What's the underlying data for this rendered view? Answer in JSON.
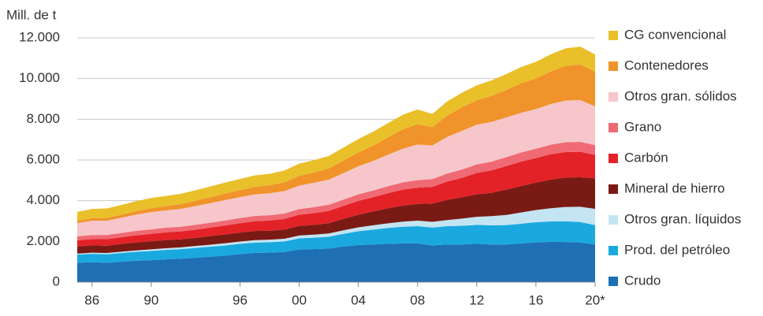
{
  "chart_data": {
    "type": "stacked_area",
    "y_label": "Mill. de t",
    "x": [
      1985,
      1986,
      1987,
      1988,
      1989,
      1990,
      1991,
      1992,
      1993,
      1994,
      1995,
      1996,
      1997,
      1998,
      1999,
      2000,
      2001,
      2002,
      2003,
      2004,
      2005,
      2006,
      2007,
      2008,
      2009,
      2010,
      2011,
      2012,
      2013,
      2014,
      2015,
      2016,
      2017,
      2018,
      2019,
      2020
    ],
    "xlim": [
      1985,
      2020
    ],
    "xticks": [
      {
        "value": 1986,
        "label": "86"
      },
      {
        "value": 1990,
        "label": "90"
      },
      {
        "value": 1996,
        "label": "96"
      },
      {
        "value": 2000,
        "label": "00"
      },
      {
        "value": 2004,
        "label": "04"
      },
      {
        "value": 2008,
        "label": "08"
      },
      {
        "value": 2012,
        "label": "12"
      },
      {
        "value": 2016,
        "label": "16"
      },
      {
        "value": 2020,
        "label": "20*"
      }
    ],
    "ylim": [
      0,
      12000
    ],
    "yticks": [
      0,
      {
        "value": 2000,
        "label": "2.000"
      },
      {
        "value": 4000,
        "label": "4.000"
      },
      {
        "value": 6000,
        "label": "6.000"
      },
      {
        "value": 8000,
        "label": "8.000"
      },
      {
        "value": 10000,
        "label": "10.000"
      },
      {
        "value": 12000,
        "label": "12.000"
      }
    ],
    "grid": true,
    "legend": "right",
    "series": [
      {
        "name": "Crudo",
        "color": "#1f6fb5",
        "values": [
          950,
          980,
          950,
          1000,
          1050,
          1080,
          1120,
          1150,
          1200,
          1250,
          1300,
          1380,
          1430,
          1450,
          1480,
          1600,
          1620,
          1650,
          1750,
          1820,
          1850,
          1880,
          1900,
          1900,
          1800,
          1850,
          1850,
          1880,
          1850,
          1850,
          1900,
          1950,
          1980,
          1970,
          1950,
          1850
        ]
      },
      {
        "name": "Prod. del petróleo",
        "color": "#1aa9df",
        "values": [
          400,
          410,
          420,
          430,
          440,
          450,
          460,
          470,
          480,
          490,
          500,
          500,
          510,
          510,
          520,
          550,
          560,
          580,
          620,
          680,
          730,
          780,
          820,
          850,
          880,
          900,
          920,
          930,
          940,
          950,
          970,
          990,
          1000,
          1020,
          1000,
          950
        ]
      },
      {
        "name": "Otros gran. líquidos",
        "color": "#c3e4f2",
        "values": [
          50,
          55,
          60,
          65,
          70,
          80,
          85,
          90,
          95,
          100,
          110,
          115,
          120,
          125,
          130,
          140,
          150,
          160,
          175,
          190,
          210,
          230,
          250,
          270,
          280,
          300,
          350,
          400,
          450,
          500,
          550,
          600,
          650,
          700,
          750,
          800
        ]
      },
      {
        "name": "Mineral de hierro",
        "color": "#7a1a14",
        "values": [
          350,
          360,
          360,
          380,
          390,
          400,
          400,
          390,
          400,
          420,
          430,
          440,
          450,
          440,
          450,
          470,
          480,
          510,
          560,
          620,
          680,
          740,
          790,
          820,
          900,
          990,
          1050,
          1100,
          1150,
          1250,
          1300,
          1350,
          1400,
          1450,
          1450,
          1500
        ]
      },
      {
        "name": "Carbón",
        "color": "#e32228",
        "values": [
          300,
          310,
          320,
          330,
          350,
          360,
          380,
          390,
          400,
          420,
          440,
          460,
          480,
          500,
          520,
          550,
          580,
          600,
          640,
          680,
          700,
          740,
          780,
          800,
          820,
          900,
          950,
          1050,
          1100,
          1150,
          1200,
          1200,
          1250,
          1250,
          1250,
          1150
        ]
      },
      {
        "name": "Grano",
        "color": "#ef6a73",
        "values": [
          200,
          200,
          210,
          210,
          220,
          220,
          230,
          230,
          240,
          240,
          250,
          250,
          260,
          260,
          270,
          280,
          290,
          300,
          310,
          320,
          330,
          340,
          360,
          370,
          380,
          390,
          410,
          420,
          430,
          440,
          450,
          460,
          470,
          480,
          490,
          480
        ]
      },
      {
        "name": "Otros gran. sólidos",
        "color": "#f6c6cb",
        "values": [
          650,
          700,
          700,
          750,
          800,
          850,
          850,
          880,
          920,
          960,
          1000,
          1030,
          1060,
          1080,
          1100,
          1150,
          1200,
          1230,
          1300,
          1380,
          1450,
          1550,
          1650,
          1750,
          1650,
          1800,
          1900,
          1950,
          1950,
          1950,
          1950,
          1950,
          2000,
          2050,
          2050,
          1900
        ]
      },
      {
        "name": "Contenedores",
        "color": "#f0932a",
        "values": [
          100,
          120,
          130,
          150,
          170,
          190,
          210,
          230,
          260,
          290,
          320,
          340,
          370,
          390,
          430,
          480,
          500,
          550,
          620,
          680,
          760,
          850,
          950,
          1000,
          900,
          1050,
          1150,
          1200,
          1280,
          1350,
          1450,
          1500,
          1600,
          1700,
          1750,
          1700
        ]
      },
      {
        "name": "CG convencional",
        "color": "#e9c02a",
        "values": [
          450,
          460,
          470,
          480,
          490,
          500,
          500,
          510,
          520,
          530,
          540,
          550,
          560,
          570,
          580,
          600,
          610,
          620,
          640,
          660,
          680,
          700,
          720,
          720,
          650,
          700,
          720,
          740,
          760,
          780,
          800,
          820,
          840,
          860,
          880,
          850
        ]
      }
    ]
  }
}
